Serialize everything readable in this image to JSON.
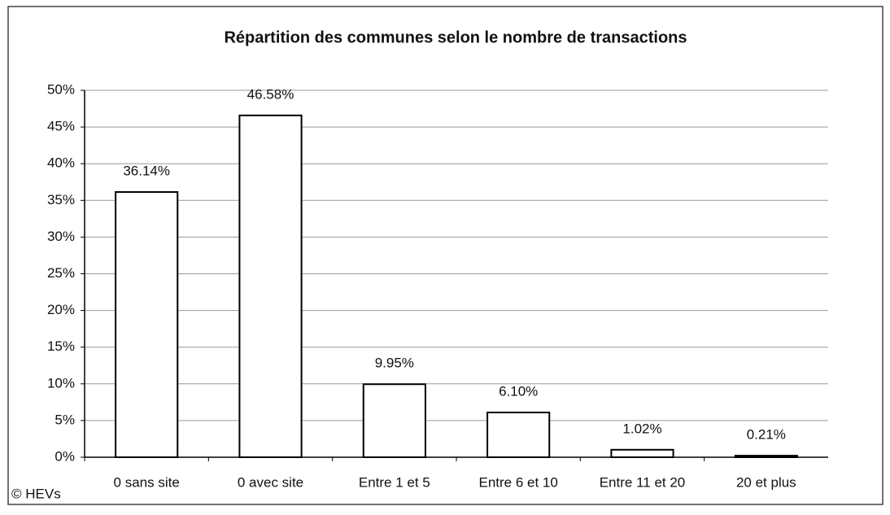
{
  "chart_data": {
    "type": "bar",
    "title": "Répartition des communes selon le nombre de transactions",
    "categories": [
      "0 sans site",
      "0 avec site",
      "Entre 1 et 5",
      "Entre 6 et 10",
      "Entre 11 et 20",
      "20 et plus"
    ],
    "values": [
      36.14,
      46.58,
      9.95,
      6.1,
      1.02,
      0.21
    ],
    "value_labels": [
      "36.14%",
      "46.58%",
      "9.95%",
      "6.10%",
      "1.02%",
      "0.21%"
    ],
    "color": "#ffffff",
    "ylim": [
      0,
      50
    ],
    "yticks": [
      {
        "value": 0,
        "label": "0%"
      },
      {
        "value": 5,
        "label": "5%"
      },
      {
        "value": 10,
        "label": "10%"
      },
      {
        "value": 15,
        "label": "15%"
      },
      {
        "value": 20,
        "label": "20%"
      },
      {
        "value": 25,
        "label": "25%"
      },
      {
        "value": 30,
        "label": "30%"
      },
      {
        "value": 35,
        "label": "35%"
      },
      {
        "value": 40,
        "label": "40%"
      },
      {
        "value": 45,
        "label": "45%"
      },
      {
        "value": 50,
        "label": "50%"
      }
    ],
    "grid": true,
    "source": "© HEVs"
  }
}
